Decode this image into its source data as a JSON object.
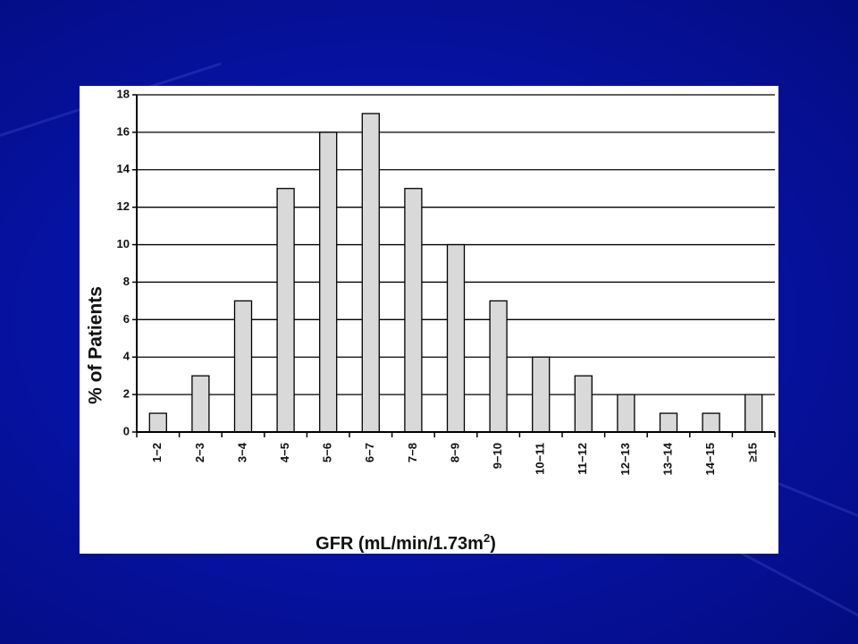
{
  "slide": {
    "background_color": "#0612a0"
  },
  "chart_data": {
    "type": "bar",
    "categories": [
      "1−2",
      "2−3",
      "3−4",
      "4−5",
      "5−6",
      "6−7",
      "7−8",
      "8−9",
      "9−10",
      "10−11",
      "11−12",
      "12−13",
      "13−14",
      "14−15",
      "≥15"
    ],
    "values": [
      1,
      3,
      7,
      13,
      16,
      17,
      13,
      10,
      7,
      4,
      3,
      2,
      1,
      1,
      2
    ],
    "ylabel": "% of Patients",
    "xlabel": "GFR (mL/min/1.73m",
    "xlabel_superscript": "2",
    "xlabel_suffix": ")",
    "ylim": [
      0,
      18
    ],
    "yticks": [
      0,
      2,
      4,
      6,
      8,
      10,
      12,
      14,
      16,
      18
    ],
    "grid": true,
    "bar_color": "#d9d9d9",
    "bar_edge_color": "#000000"
  }
}
